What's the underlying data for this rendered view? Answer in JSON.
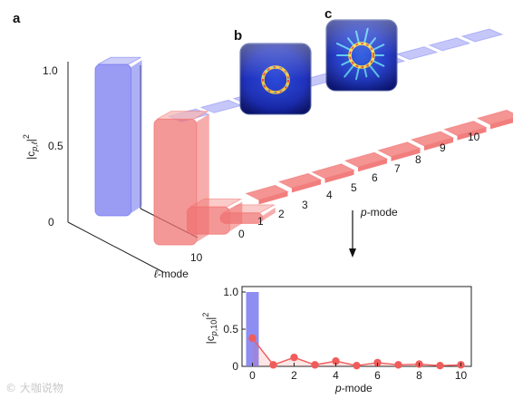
{
  "panels": {
    "a": "a",
    "b": "b",
    "c": "c"
  },
  "colors": {
    "blue": "#6f72ef",
    "blue_light": "#b7b9f7",
    "red": "#f0706f",
    "red_light": "#f8b7b3",
    "inset_blue": "#7a79f0",
    "inset_red": "#f05c5a"
  },
  "chart_data": [
    {
      "type": "bar",
      "subtype": "3d-bar",
      "title": "",
      "xlabel": "p-mode",
      "ylabel": "|c_{p,ℓ}|^2",
      "depth_label": "ℓ-mode",
      "p_ticks": [
        "0",
        "1",
        "2",
        "3",
        "4",
        "5",
        "6",
        "7",
        "8",
        "9",
        "10"
      ],
      "l_ticks": [
        "10"
      ],
      "z_ticks": [
        "0",
        "0.5",
        "1.0"
      ],
      "zlim": [
        0,
        1.0
      ],
      "categories_p": [
        0,
        1,
        2,
        3,
        4,
        5,
        6,
        7,
        8,
        9,
        10
      ],
      "series": [
        {
          "row": "back",
          "color": "blue",
          "values": [
            1.0,
            0.0,
            0.0,
            0.0,
            0.0,
            0.0,
            0.0,
            0.0,
            0.0,
            0.0,
            0.0
          ]
        },
        {
          "row": "front",
          "ell": 10,
          "color": "red",
          "values": [
            0.83,
            0.18,
            0.07,
            0.03,
            0.06,
            0.03,
            0.05,
            0.04,
            0.04,
            0.03,
            0.04
          ]
        }
      ]
    },
    {
      "type": "bar",
      "title": "",
      "xlabel": "p-mode",
      "ylabel": "|c_{p,10}|^2",
      "x_ticks": [
        "0",
        "2",
        "4",
        "6",
        "8",
        "10"
      ],
      "y_ticks": [
        "0",
        "0.5",
        "1.0"
      ],
      "ylim": [
        0,
        1.0
      ],
      "xlim": [
        -0.5,
        10.5
      ],
      "bars": [
        {
          "x": 0,
          "value": 1.0,
          "color": "blue"
        }
      ],
      "series": [
        {
          "color": "red",
          "type": "line",
          "x": [
            0,
            1,
            2,
            3,
            4,
            5,
            6,
            7,
            8,
            9,
            10
          ],
          "y": [
            0.38,
            0.02,
            0.12,
            0.02,
            0.07,
            0.01,
            0.05,
            0.02,
            0.03,
            0.01,
            0.02
          ]
        }
      ]
    }
  ],
  "watermark": "© 大咖说物"
}
